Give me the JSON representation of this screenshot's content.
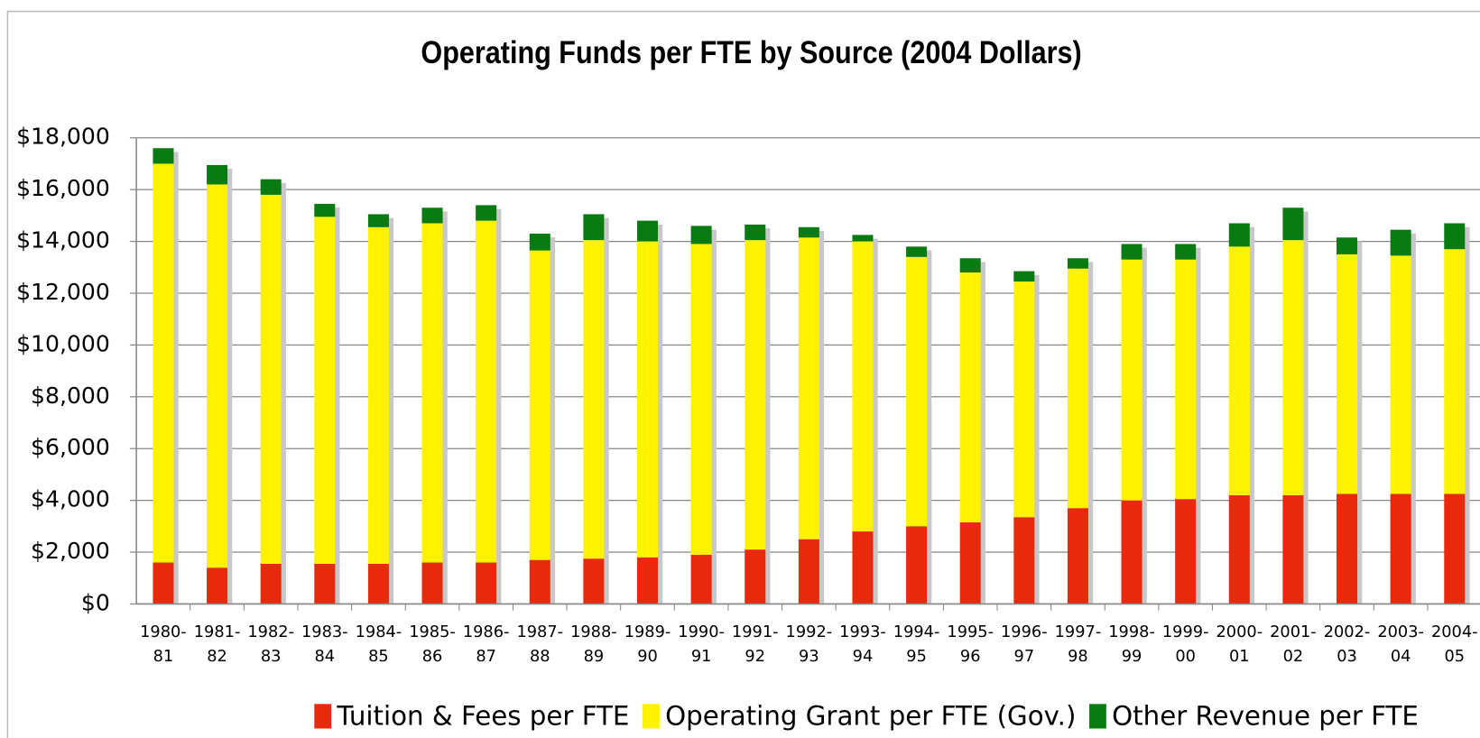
{
  "chart_data": {
    "type": "stacked_bar",
    "title": "Operating Funds per FTE by Source (2004 Dollars)",
    "categories": [
      "1980-81",
      "1981-82",
      "1982-83",
      "1983-84",
      "1984-85",
      "1985-86",
      "1986-87",
      "1987-88",
      "1988-89",
      "1989-90",
      "1990-91",
      "1991-92",
      "1992-93",
      "1993-94",
      "1994-95",
      "1995-96",
      "1996-97",
      "1997-98",
      "1998-99",
      "1999-00",
      "2000-01",
      "2001-02",
      "2002-03",
      "2003-04",
      "2004-05"
    ],
    "series": [
      {
        "name": "Tuition & Fees per FTE",
        "color": "#e8290b",
        "values": [
          1600,
          1400,
          1550,
          1550,
          1550,
          1600,
          1600,
          1700,
          1750,
          1800,
          1900,
          2100,
          2500,
          2800,
          3000,
          3150,
          3350,
          3700,
          4000,
          4050,
          4200,
          4200,
          4250,
          4250,
          4250
        ]
      },
      {
        "name": "Operating Grant per FTE (Gov.)",
        "color": "#fff200",
        "values": [
          15400,
          14800,
          14250,
          13400,
          13000,
          13100,
          13200,
          11950,
          12300,
          12200,
          12000,
          11950,
          11650,
          11200,
          10400,
          9650,
          9100,
          9250,
          9300,
          9250,
          9600,
          9850,
          9250,
          9200,
          9450
        ]
      },
      {
        "name": "Other Revenue per FTE",
        "color": "#0a7a12",
        "values": [
          600,
          750,
          600,
          500,
          500,
          600,
          600,
          650,
          1000,
          800,
          700,
          600,
          400,
          250,
          400,
          550,
          400,
          400,
          600,
          600,
          900,
          1250,
          650,
          1000,
          1000
        ]
      }
    ],
    "ylim": [
      0,
      18000
    ],
    "yticks": [
      {
        "value": 0,
        "label": "$0"
      },
      {
        "value": 2000,
        "label": "$2,000"
      },
      {
        "value": 4000,
        "label": "$4,000"
      },
      {
        "value": 6000,
        "label": "$6,000"
      },
      {
        "value": 8000,
        "label": "$8,000"
      },
      {
        "value": 10000,
        "label": "$10,000"
      },
      {
        "value": 12000,
        "label": "$12,000"
      },
      {
        "value": 14000,
        "label": "$14,000"
      },
      {
        "value": 16000,
        "label": "$16,000"
      },
      {
        "value": 18000,
        "label": "$18,000"
      }
    ],
    "grid": true,
    "legend": "bottom"
  }
}
